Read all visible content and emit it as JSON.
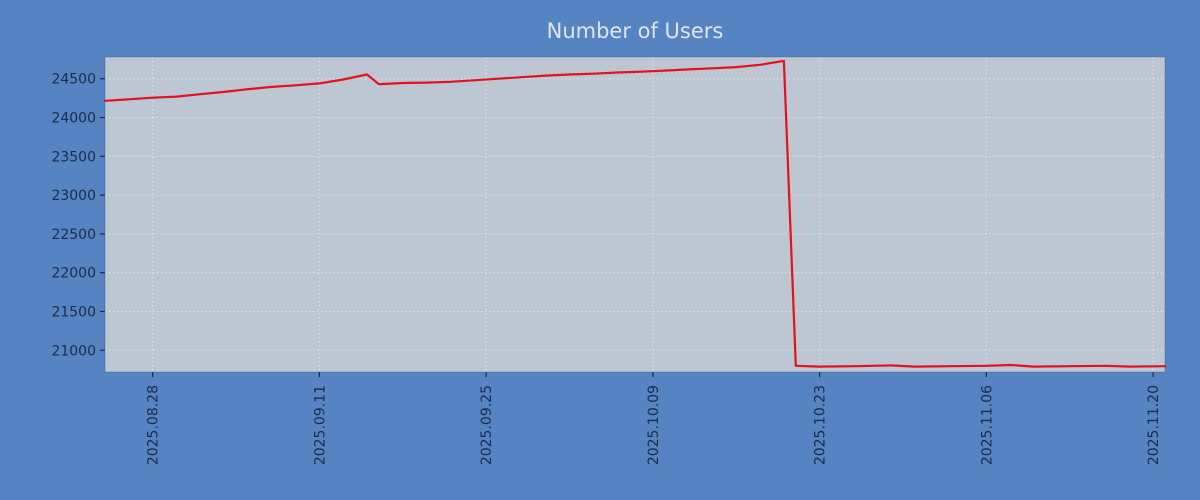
{
  "colors": {
    "page_bg": "#5684c3",
    "plot_bg": "#bdc6d3",
    "grid": "#eef1f6",
    "tick_text": "#1c2b4a",
    "title_text": "#dde6f2",
    "line": "#e3101e"
  },
  "chart_data": {
    "type": "line",
    "title": "Number of Users",
    "xlabel": "",
    "ylabel": "",
    "legend": "none",
    "grid": "dotted",
    "x_axis": {
      "min": "2025-08-24",
      "max": "2025-11-21",
      "ticks": [
        {
          "date": "2025-08-28",
          "label": "2025.08.28"
        },
        {
          "date": "2025-09-11",
          "label": "2025.09.11"
        },
        {
          "date": "2025-09-25",
          "label": "2025.09.25"
        },
        {
          "date": "2025-10-09",
          "label": "2025.10.09"
        },
        {
          "date": "2025-10-23",
          "label": "2025.10.23"
        },
        {
          "date": "2025-11-06",
          "label": "2025.11.06"
        },
        {
          "date": "2025-11-20",
          "label": "2025.11.20"
        }
      ]
    },
    "y_axis": {
      "min": 20720,
      "max": 24780,
      "ticks": [
        21000,
        21500,
        22000,
        22500,
        23000,
        23500,
        24000,
        24500
      ]
    },
    "series": [
      {
        "name": "users",
        "color": "#e3101e",
        "points": [
          [
            "2025-08-24",
            24215
          ],
          [
            "2025-08-26",
            24235
          ],
          [
            "2025-08-28",
            24255
          ],
          [
            "2025-08-30",
            24270
          ],
          [
            "2025-09-01",
            24300
          ],
          [
            "2025-09-03",
            24330
          ],
          [
            "2025-09-05",
            24365
          ],
          [
            "2025-09-07",
            24395
          ],
          [
            "2025-09-09",
            24415
          ],
          [
            "2025-09-11",
            24440
          ],
          [
            "2025-09-13",
            24490
          ],
          [
            "2025-09-15",
            24555
          ],
          [
            "2025-09-16",
            24430
          ],
          [
            "2025-09-18",
            24445
          ],
          [
            "2025-09-20",
            24450
          ],
          [
            "2025-09-22",
            24460
          ],
          [
            "2025-09-24",
            24480
          ],
          [
            "2025-09-26",
            24500
          ],
          [
            "2025-09-28",
            24520
          ],
          [
            "2025-09-30",
            24540
          ],
          [
            "2025-10-02",
            24555
          ],
          [
            "2025-10-04",
            24565
          ],
          [
            "2025-10-06",
            24580
          ],
          [
            "2025-10-08",
            24590
          ],
          [
            "2025-10-10",
            24605
          ],
          [
            "2025-10-12",
            24620
          ],
          [
            "2025-10-14",
            24635
          ],
          [
            "2025-10-16",
            24650
          ],
          [
            "2025-10-18",
            24680
          ],
          [
            "2025-10-19",
            24705
          ],
          [
            "2025-10-20",
            24730
          ],
          [
            "2025-10-21",
            20800
          ],
          [
            "2025-10-23",
            20790
          ],
          [
            "2025-10-26",
            20795
          ],
          [
            "2025-10-29",
            20805
          ],
          [
            "2025-10-31",
            20790
          ],
          [
            "2025-11-03",
            20795
          ],
          [
            "2025-11-06",
            20800
          ],
          [
            "2025-11-08",
            20810
          ],
          [
            "2025-11-10",
            20790
          ],
          [
            "2025-11-13",
            20795
          ],
          [
            "2025-11-16",
            20800
          ],
          [
            "2025-11-18",
            20790
          ],
          [
            "2025-11-21",
            20795
          ]
        ]
      }
    ]
  }
}
